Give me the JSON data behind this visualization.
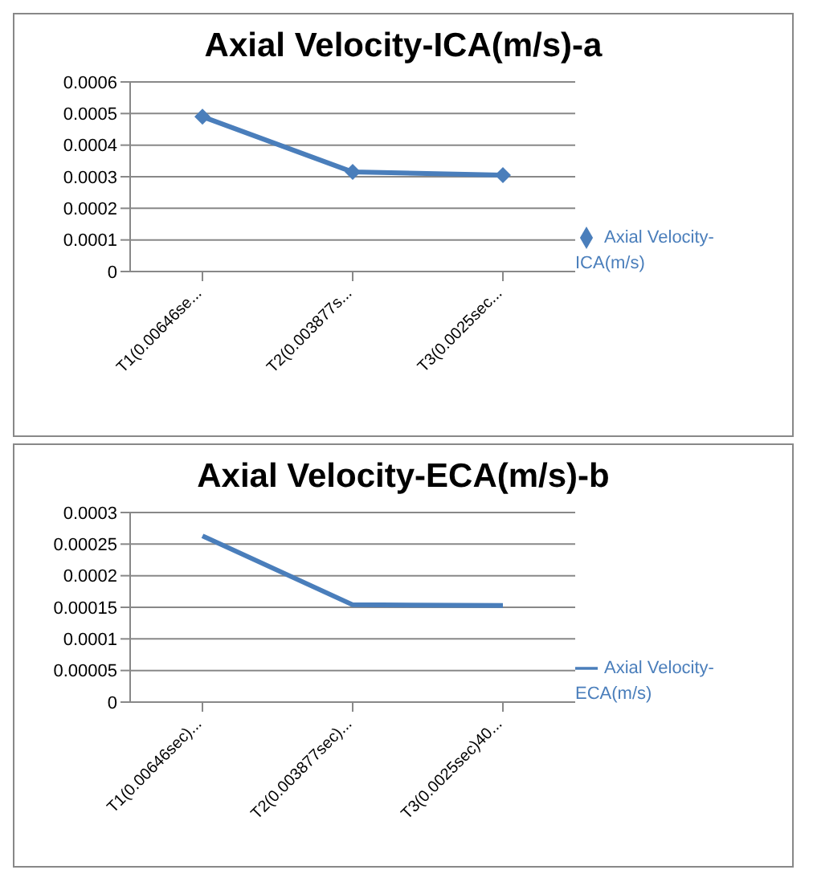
{
  "chart_data": [
    {
      "type": "line",
      "title": "Axial Velocity-ICA(m/s)-a",
      "categories": [
        "T1(0.00646se...",
        "T2(0.003877s...",
        "T3(0.0025sec..."
      ],
      "series": [
        {
          "name": "Axial Velocity-ICA(m/s)",
          "color": "#4a7ebb",
          "values": [
            0.00049,
            0.000315,
            0.000305
          ]
        }
      ],
      "ylim": [
        0,
        0.0006
      ],
      "yticks": [
        0,
        0.0001,
        0.0002,
        0.0003,
        0.0004,
        0.0005,
        0.0006
      ],
      "grid": "y",
      "legend": "right",
      "marker": "diamond"
    },
    {
      "type": "line",
      "title": "Axial Velocity-ECA(m/s)-b",
      "categories": [
        "T1(0.00646sec)...",
        "T2(0.003877sec)...",
        "T3(0.0025sec)40..."
      ],
      "series": [
        {
          "name": "Axial Velocity-ECA(m/s)",
          "color": "#4a7ebb",
          "values": [
            0.000263,
            0.000154,
            0.000153
          ]
        }
      ],
      "ylim": [
        0,
        0.0003
      ],
      "yticks": [
        0,
        {
          "value": 5e-05,
          "label": "0.00005"
        },
        0.0001,
        0.00015,
        0.0002,
        0.00025,
        0.0003
      ],
      "grid": "y",
      "legend": "right",
      "marker": "none"
    }
  ]
}
